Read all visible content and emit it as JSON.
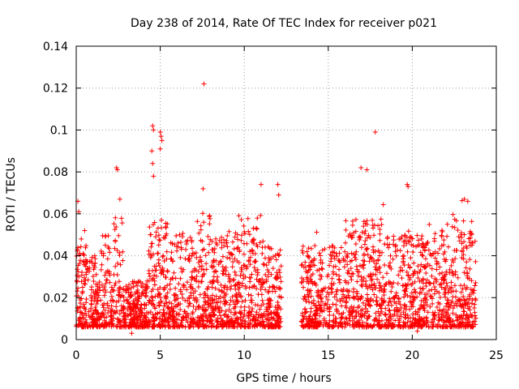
{
  "chart_data": {
    "type": "scatter",
    "title": "Day 238 of 2014, Rate Of TEC Index for receiver p021",
    "xlabel": "GPS time / hours",
    "ylabel": "ROTI / TECUs",
    "xlim": [
      0,
      25
    ],
    "ylim": [
      0,
      0.14
    ],
    "x_ticks": [
      0,
      5,
      10,
      15,
      20,
      25
    ],
    "y_ticks": [
      0,
      0.02,
      0.04,
      0.06,
      0.08,
      0.1,
      0.12,
      0.14
    ],
    "x_tick_labels": [
      "0",
      "5",
      "10",
      "15",
      "20",
      "25"
    ],
    "y_tick_labels": [
      "0",
      "0.02",
      "0.04",
      "0.06",
      "0.08",
      "0.1",
      "0.12",
      "0.14"
    ],
    "grid": true,
    "marker": "+",
    "color": "#ff0000",
    "data_gap_hours": [
      12.2,
      13.4
    ],
    "series": [
      {
        "name": "ROTI",
        "note": "dense band ~0.005-0.04 TECU/s from 0-12.2 h and 13.4-23.8 h; notable outliers listed",
        "points": [
          [
            0.1,
            0.066
          ],
          [
            0.15,
            0.061
          ],
          [
            0.3,
            0.048
          ],
          [
            0.5,
            0.052
          ],
          [
            2.4,
            0.082
          ],
          [
            2.45,
            0.081
          ],
          [
            2.6,
            0.067
          ],
          [
            3.3,
            0.003
          ],
          [
            4.55,
            0.102
          ],
          [
            4.6,
            0.1
          ],
          [
            4.5,
            0.09
          ],
          [
            4.55,
            0.084
          ],
          [
            4.6,
            0.078
          ],
          [
            5.0,
            0.099
          ],
          [
            5.05,
            0.097
          ],
          [
            5.1,
            0.095
          ],
          [
            5.0,
            0.091
          ],
          [
            7.6,
            0.122
          ],
          [
            7.55,
            0.072
          ],
          [
            11.0,
            0.074
          ],
          [
            12.0,
            0.074
          ],
          [
            12.05,
            0.069
          ],
          [
            16.95,
            0.082
          ],
          [
            17.3,
            0.081
          ],
          [
            17.8,
            0.099
          ],
          [
            19.7,
            0.074
          ],
          [
            19.75,
            0.073
          ],
          [
            20.3,
            0.004
          ],
          [
            23.1,
            0.067
          ],
          [
            23.3,
            0.066
          ]
        ]
      }
    ]
  }
}
